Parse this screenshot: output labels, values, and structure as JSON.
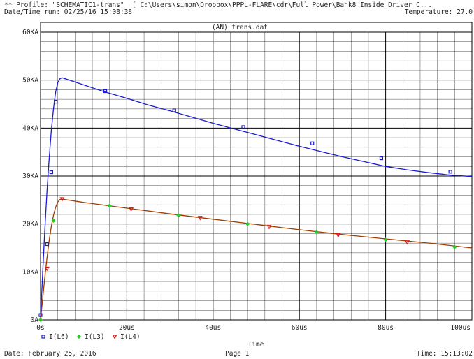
{
  "header": {
    "profile_line": "** Profile: \"SCHEMATIC1-trans\"  [ C:\\Users\\simon\\Dropbox\\PPPL-FLARE\\cdr\\Full Power\\Bank8 Inside Driver C...",
    "date_line": "Date/Time run: 02/25/16 15:08:38",
    "temperature": "Temperature: 27.0"
  },
  "footer": {
    "date": "Date: February 25, 2016",
    "page": "Page 1",
    "time": "Time: 15:13:02"
  },
  "colors": {
    "axis": "#000000",
    "grid": "#4a4a4a",
    "I(L6)": "#1a1ad6",
    "I(L3)": "#a03c00",
    "I(L3)_marker": "#22cc22",
    "I(L4)_marker": "#dd1a1a"
  },
  "chart_data": {
    "type": "line",
    "title": "(AN) trans.dat",
    "xlabel": "Time",
    "ylabel": "",
    "x_unit": "us",
    "y_unit": "KA",
    "xlim": [
      0,
      100
    ],
    "ylim": [
      0,
      60
    ],
    "x_ticks": [
      0,
      20,
      40,
      60,
      80,
      100
    ],
    "x_tick_labels": [
      "0s",
      "20us",
      "40us",
      "60us",
      "80us",
      "100us"
    ],
    "y_ticks": [
      0,
      10,
      20,
      30,
      40,
      50,
      60
    ],
    "y_tick_labels": [
      "0A",
      "10KA",
      "20KA",
      "30KA",
      "40KA",
      "50KA",
      "60KA"
    ],
    "grid": true,
    "legend": "bottom-left",
    "series": [
      {
        "name": "I(L6)",
        "marker": "square",
        "x": [
          0,
          0.5,
          1,
          1.5,
          2,
          2.5,
          3,
          3.5,
          4,
          4.5,
          5,
          10,
          15,
          20,
          25,
          30,
          35,
          40,
          45,
          50,
          55,
          60,
          65,
          70,
          75,
          80,
          85,
          90,
          95,
          100
        ],
        "y": [
          0,
          10,
          19,
          27,
          33.5,
          39.5,
          44,
          47.5,
          49.5,
          50.3,
          50.5,
          49,
          47.5,
          46.2,
          44.8,
          43.6,
          42.3,
          41,
          39.8,
          38.6,
          37.4,
          36.2,
          35.1,
          34.0,
          33.0,
          32.0,
          31.3,
          30.7,
          30.2,
          29.9
        ],
        "marker_x": [
          0,
          1.5,
          2.5,
          3.5,
          15,
          31,
          47,
          63,
          79,
          95
        ],
        "marker_y": [
          1,
          15.8,
          30.8,
          45.5,
          47.7,
          43.7,
          40.2,
          36.8,
          33.7,
          30.9
        ]
      },
      {
        "name": "I(L3)",
        "marker": "diamond",
        "x": [
          0,
          0.5,
          1,
          1.5,
          2,
          2.5,
          3,
          3.5,
          4,
          4.5,
          5,
          10,
          20,
          30,
          40,
          50,
          60,
          70,
          80,
          90,
          100
        ],
        "y": [
          0,
          4.5,
          9,
          13,
          16.5,
          19.5,
          21.8,
          23.5,
          24.6,
          25.1,
          25.2,
          24.5,
          23.3,
          22.1,
          21.0,
          19.9,
          18.8,
          17.8,
          16.9,
          16.0,
          15.0
        ],
        "marker_x": [
          0,
          3,
          16,
          32,
          48,
          64,
          80,
          96
        ],
        "marker_y": [
          0,
          20.7,
          23.8,
          21.8,
          20.0,
          18.3,
          16.7,
          15.2
        ]
      },
      {
        "name": "I(L4)",
        "marker": "triangle-down",
        "marker_x": [
          1.5,
          5,
          21,
          37,
          53,
          69,
          85
        ],
        "marker_y": [
          10.7,
          25.2,
          23.1,
          21.3,
          19.4,
          17.7,
          16.2
        ]
      }
    ]
  }
}
